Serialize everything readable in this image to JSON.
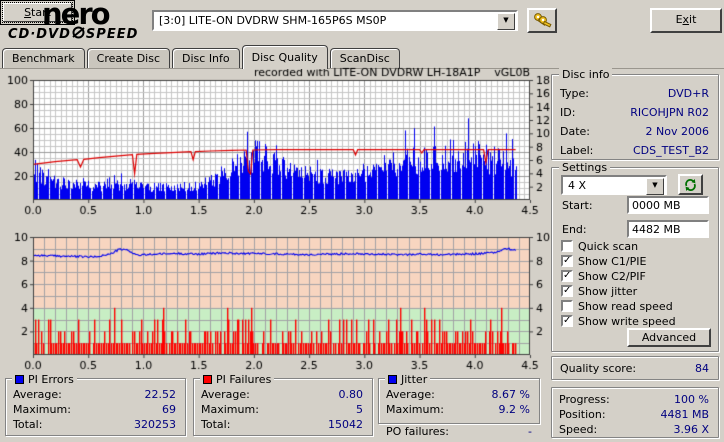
{
  "window": {
    "logo_line1": "nero",
    "logo_sub_left": "CD·DVD",
    "logo_sub_right": "SPEED",
    "drive_selector": "[3:0]   LITE-ON DVDRW SHM-165P6S MS0P",
    "start_u": "S",
    "start_rest": "tart",
    "exit_pre": "E",
    "exit_u": "x",
    "exit_rest": "it"
  },
  "tabs": [
    {
      "label": "Benchmark",
      "active": false
    },
    {
      "label": "Create Disc",
      "active": false
    },
    {
      "label": "Disc Info",
      "active": false
    },
    {
      "label": "Disc Quality",
      "active": true
    },
    {
      "label": "ScanDisc",
      "active": false
    }
  ],
  "disc_info": {
    "title": "Disc info",
    "rows": [
      [
        "Type:",
        "DVD+R"
      ],
      [
        "ID:",
        "RICOHJPN R02"
      ],
      [
        "Date:",
        "2 Nov 2006"
      ],
      [
        "Label:",
        "CDS_TEST_B2"
      ]
    ]
  },
  "settings": {
    "title": "Settings",
    "speed_value": "4 X",
    "start_label": "Start:",
    "start_value": "0000 MB",
    "end_label": "End:",
    "end_value": "4482 MB",
    "checkboxes": [
      {
        "label": "Quick scan",
        "checked": false
      },
      {
        "label": "Show C1/PIE",
        "checked": true
      },
      {
        "label": "Show C2/PIF",
        "checked": true
      },
      {
        "label": "Show jitter",
        "checked": true
      },
      {
        "label": "Show read speed",
        "checked": false
      },
      {
        "label": "Show write speed",
        "checked": true
      }
    ],
    "advanced_label": "Advanced"
  },
  "quality": {
    "label": "Quality score:",
    "value": "84"
  },
  "progress": {
    "rows": [
      [
        "Progress:",
        "100 %"
      ],
      [
        "Position:",
        "4481 MB"
      ],
      [
        "Speed:",
        "3.96 X"
      ]
    ]
  },
  "stats": [
    {
      "title": "PI Errors",
      "marker": "#0000f0",
      "rows": [
        [
          "Average:",
          "22.52"
        ],
        [
          "Maximum:",
          "69"
        ],
        [
          "Total:",
          "320253"
        ]
      ]
    },
    {
      "title": "PI Failures",
      "marker": "#ff0000",
      "rows": [
        [
          "Average:",
          "0.80"
        ],
        [
          "Maximum:",
          "5"
        ],
        [
          "Total:",
          "15042"
        ]
      ]
    },
    {
      "title": "Jitter",
      "marker": "#0000f0",
      "rows": [
        [
          "Average:",
          "8.67 %"
        ],
        [
          "Maximum:",
          "9.2 %"
        ]
      ]
    }
  ],
  "po_failures": {
    "label": "PO failures:",
    "value": "-"
  },
  "chart_data": [
    {
      "type": "bar",
      "name": "PI Errors / write speed",
      "title": "recorded with LITE-ON DVDRW LH-18A1P    vGL0B",
      "xlim": [
        0,
        4.5
      ],
      "x_ticks": [
        "0.0",
        "0.5",
        "1.0",
        "1.5",
        "2.0",
        "2.5",
        "3.0",
        "3.5",
        "4.0",
        "4.5"
      ],
      "left_axis": {
        "range": [
          0,
          100
        ],
        "ticks": [
          100,
          80,
          60,
          40,
          20
        ]
      },
      "right_axis": {
        "range": [
          0,
          18
        ],
        "ticks": [
          18,
          16,
          14,
          12,
          10,
          8,
          6,
          4,
          2
        ]
      },
      "data_end_x": 4.37,
      "bar_color": "#0000f0",
      "line_color": "#dd0000",
      "pie_envelope": [
        [
          0.0,
          24
        ],
        [
          0.05,
          28
        ],
        [
          0.1,
          20
        ],
        [
          0.2,
          18
        ],
        [
          0.3,
          17
        ],
        [
          0.4,
          16
        ],
        [
          0.5,
          15
        ],
        [
          0.6,
          14
        ],
        [
          0.7,
          14
        ],
        [
          0.8,
          15
        ],
        [
          0.9,
          16
        ],
        [
          1.0,
          14
        ],
        [
          1.1,
          13
        ],
        [
          1.2,
          13
        ],
        [
          1.3,
          13
        ],
        [
          1.4,
          14
        ],
        [
          1.5,
          15
        ],
        [
          1.6,
          18
        ],
        [
          1.7,
          24
        ],
        [
          1.8,
          31
        ],
        [
          1.9,
          38
        ],
        [
          2.0,
          44
        ],
        [
          2.05,
          47
        ],
        [
          2.1,
          44
        ],
        [
          2.2,
          36
        ],
        [
          2.3,
          30
        ],
        [
          2.4,
          27
        ],
        [
          2.5,
          25
        ],
        [
          2.6,
          24
        ],
        [
          2.7,
          23
        ],
        [
          2.8,
          24
        ],
        [
          2.9,
          26
        ],
        [
          3.0,
          29
        ],
        [
          3.1,
          32
        ],
        [
          3.2,
          35
        ],
        [
          3.3,
          38
        ],
        [
          3.4,
          41
        ],
        [
          3.5,
          42
        ],
        [
          3.6,
          40
        ],
        [
          3.7,
          43
        ],
        [
          3.8,
          46
        ],
        [
          3.9,
          49
        ],
        [
          4.0,
          47
        ],
        [
          4.1,
          42
        ],
        [
          4.2,
          40
        ],
        [
          4.3,
          37
        ],
        [
          4.37,
          32
        ]
      ],
      "write_speed_line": [
        [
          0.0,
          5.35
        ],
        [
          0.2,
          5.75
        ],
        [
          0.4,
          6.05
        ],
        [
          0.43,
          4.95
        ],
        [
          0.46,
          6.1
        ],
        [
          0.6,
          6.35
        ],
        [
          0.8,
          6.65
        ],
        [
          0.9,
          6.8
        ],
        [
          0.92,
          3.95
        ],
        [
          0.94,
          6.85
        ],
        [
          1.1,
          7.0
        ],
        [
          1.3,
          7.15
        ],
        [
          1.43,
          7.25
        ],
        [
          1.45,
          6.05
        ],
        [
          1.47,
          7.25
        ],
        [
          1.6,
          7.35
        ],
        [
          1.8,
          7.45
        ],
        [
          1.93,
          7.5
        ],
        [
          1.95,
          4.3
        ],
        [
          1.97,
          3.9
        ],
        [
          1.99,
          7.5
        ],
        [
          2.2,
          7.55
        ],
        [
          2.9,
          7.55
        ],
        [
          2.92,
          6.75
        ],
        [
          2.94,
          7.55
        ],
        [
          3.5,
          7.55
        ],
        [
          3.52,
          7.05
        ],
        [
          3.54,
          7.55
        ],
        [
          4.08,
          7.55
        ],
        [
          4.1,
          5.6
        ],
        [
          4.12,
          7.55
        ],
        [
          4.37,
          7.55
        ]
      ],
      "summary": {
        "pie_average": 22.52,
        "pie_maximum": 69,
        "pie_total": 320253
      }
    },
    {
      "type": "bar",
      "name": "PI Failures / jitter",
      "xlim": [
        0,
        4.5
      ],
      "x_ticks": [
        "0.0",
        "0.5",
        "1.0",
        "1.5",
        "2.0",
        "2.5",
        "3.0",
        "3.5",
        "4.0",
        "4.5"
      ],
      "axis": {
        "range": [
          0,
          10
        ],
        "ticks": [
          10,
          8,
          6,
          4,
          2
        ]
      },
      "zones": [
        {
          "from": 0,
          "to": 4,
          "color": "#c8eec4"
        },
        {
          "from": 4,
          "to": 10,
          "color": "#f7d5c0"
        }
      ],
      "data_end_x": 4.37,
      "bar_color": "#ff0000",
      "line_color": "#0000f0",
      "pif_distribution": {
        "0": 0.09,
        "1": 0.55,
        "2": 0.23,
        "3": 0.125,
        "4": 0.005
      },
      "pif_spikes": [
        [
          1.18,
          4
        ],
        [
          1.97,
          4
        ],
        [
          3.32,
          4
        ],
        [
          3.54,
          4
        ],
        [
          4.24,
          4
        ]
      ],
      "jitter_line": [
        [
          0.0,
          8.45
        ],
        [
          0.2,
          8.4
        ],
        [
          0.4,
          8.35
        ],
        [
          0.55,
          8.3
        ],
        [
          0.7,
          8.55
        ],
        [
          0.78,
          8.95
        ],
        [
          0.85,
          8.9
        ],
        [
          0.95,
          8.45
        ],
        [
          1.1,
          8.55
        ],
        [
          1.3,
          8.6
        ],
        [
          1.5,
          8.55
        ],
        [
          1.7,
          8.65
        ],
        [
          1.9,
          8.6
        ],
        [
          2.1,
          8.6
        ],
        [
          2.3,
          8.55
        ],
        [
          2.5,
          8.5
        ],
        [
          2.7,
          8.55
        ],
        [
          2.9,
          8.6
        ],
        [
          3.1,
          8.55
        ],
        [
          3.3,
          8.5
        ],
        [
          3.5,
          8.55
        ],
        [
          3.7,
          8.5
        ],
        [
          3.9,
          8.55
        ],
        [
          4.05,
          8.6
        ],
        [
          4.2,
          8.7
        ],
        [
          4.28,
          9.05
        ],
        [
          4.33,
          8.95
        ],
        [
          4.37,
          8.85
        ]
      ],
      "summary": {
        "pif_average": 0.8,
        "pif_maximum": 5,
        "pif_total": 15042,
        "jitter_average_pct": 8.67,
        "jitter_maximum_pct": 9.2
      }
    }
  ]
}
